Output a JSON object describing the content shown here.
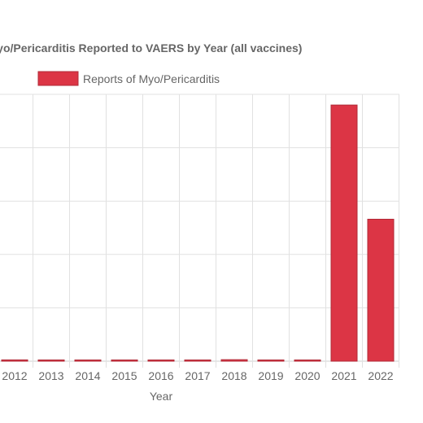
{
  "chart_data": {
    "type": "bar",
    "title": "Myo/Pericarditis Reported to VAERS by Year (all vaccines)",
    "xlabel": "Year",
    "ylabel": "",
    "categories": [
      "2012",
      "2013",
      "2014",
      "2015",
      "2016",
      "2017",
      "2018",
      "2019",
      "2020",
      "2021",
      "2022"
    ],
    "series": [
      {
        "name": "Reports of Myo/Pericarditis",
        "color": "#dc3545",
        "border_color": "#b02a37",
        "values": [
          12,
          10,
          6,
          4,
          4,
          6,
          14,
          6,
          4,
          2400,
          1330
        ]
      }
    ],
    "ylim": [
      0,
      2500
    ],
    "grid": true,
    "legend_position": "top"
  }
}
